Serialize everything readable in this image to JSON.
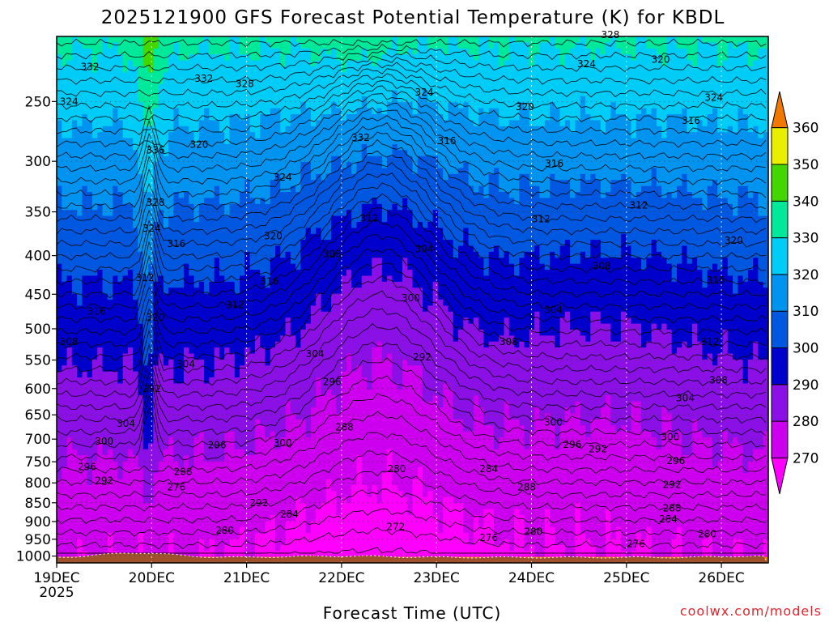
{
  "chart_data": {
    "type": "heatmap",
    "title": "2025121900 GFS Forecast Potential Temperature (K) for KBDL",
    "xlabel": "Forecast Time (UTC)",
    "ylabel": "",
    "credit": "coolwx.com/models",
    "x_ticks": [
      "19DEC",
      "20DEC",
      "21DEC",
      "22DEC",
      "23DEC",
      "24DEC",
      "25DEC",
      "26DEC"
    ],
    "x_year": "2025",
    "x_range_days": [
      0,
      7.5
    ],
    "y_ticks": [
      250,
      300,
      350,
      400,
      450,
      500,
      550,
      600,
      650,
      700,
      750,
      800,
      850,
      900,
      950,
      1000
    ],
    "ylim": [
      1020,
      200
    ],
    "y_scale": "log",
    "colorbar": {
      "ticks": [
        270,
        280,
        290,
        300,
        310,
        320,
        330,
        340,
        350,
        360
      ],
      "colors": [
        "#ff00ff",
        "#cc00ee",
        "#8a10e6",
        "#0000cc",
        "#0058e0",
        "#0094f0",
        "#00ccf8",
        "#00e89a",
        "#44d600",
        "#e8f000",
        "#f8a800",
        "#f07800"
      ]
    },
    "contour_labels": [
      {
        "text": "332",
        "x": 0.35,
        "p": 225
      },
      {
        "text": "324",
        "x": 0.13,
        "p": 250
      },
      {
        "text": "332",
        "x": 1.55,
        "p": 233
      },
      {
        "text": "328",
        "x": 1.98,
        "p": 237
      },
      {
        "text": "336",
        "x": 1.04,
        "p": 290
      },
      {
        "text": "320",
        "x": 1.5,
        "p": 285
      },
      {
        "text": "324",
        "x": 2.38,
        "p": 315
      },
      {
        "text": "328",
        "x": 1.04,
        "p": 340
      },
      {
        "text": "324",
        "x": 1.0,
        "p": 368
      },
      {
        "text": "316",
        "x": 1.26,
        "p": 386
      },
      {
        "text": "320",
        "x": 2.28,
        "p": 377
      },
      {
        "text": "312",
        "x": 0.93,
        "p": 428
      },
      {
        "text": "316",
        "x": 2.24,
        "p": 433
      },
      {
        "text": "312",
        "x": 1.88,
        "p": 465
      },
      {
        "text": "316",
        "x": 0.42,
        "p": 474
      },
      {
        "text": "320",
        "x": 1.04,
        "p": 483
      },
      {
        "text": "308",
        "x": 0.13,
        "p": 520
      },
      {
        "text": "304",
        "x": 1.36,
        "p": 557
      },
      {
        "text": "304",
        "x": 2.72,
        "p": 540
      },
      {
        "text": "296",
        "x": 2.9,
        "p": 588
      },
      {
        "text": "292",
        "x": 1.0,
        "p": 600
      },
      {
        "text": "304",
        "x": 0.73,
        "p": 668
      },
      {
        "text": "300",
        "x": 0.5,
        "p": 705
      },
      {
        "text": "296",
        "x": 1.69,
        "p": 713
      },
      {
        "text": "300",
        "x": 2.38,
        "p": 708
      },
      {
        "text": "288",
        "x": 3.03,
        "p": 675
      },
      {
        "text": "296",
        "x": 0.32,
        "p": 762
      },
      {
        "text": "292",
        "x": 0.5,
        "p": 795
      },
      {
        "text": "288",
        "x": 1.33,
        "p": 773
      },
      {
        "text": "276",
        "x": 1.26,
        "p": 810
      },
      {
        "text": "292",
        "x": 2.13,
        "p": 850
      },
      {
        "text": "284",
        "x": 2.45,
        "p": 880
      },
      {
        "text": "280",
        "x": 1.77,
        "p": 925
      },
      {
        "text": "280",
        "x": 3.58,
        "p": 767
      },
      {
        "text": "284",
        "x": 4.55,
        "p": 767
      },
      {
        "text": "288",
        "x": 4.95,
        "p": 810
      },
      {
        "text": "272",
        "x": 3.57,
        "p": 915
      },
      {
        "text": "276",
        "x": 4.55,
        "p": 946
      },
      {
        "text": "280",
        "x": 5.02,
        "p": 928
      },
      {
        "text": "312",
        "x": 3.29,
        "p": 357
      },
      {
        "text": "308",
        "x": 2.9,
        "p": 398
      },
      {
        "text": "304",
        "x": 3.87,
        "p": 392
      },
      {
        "text": "300",
        "x": 3.73,
        "p": 455
      },
      {
        "text": "292",
        "x": 3.85,
        "p": 545
      },
      {
        "text": "316",
        "x": 4.11,
        "p": 282
      },
      {
        "text": "324",
        "x": 3.87,
        "p": 243
      },
      {
        "text": "332",
        "x": 3.2,
        "p": 279
      },
      {
        "text": "320",
        "x": 4.93,
        "p": 254
      },
      {
        "text": "324",
        "x": 5.58,
        "p": 223
      },
      {
        "text": "328",
        "x": 5.83,
        "p": 204
      },
      {
        "text": "320",
        "x": 6.36,
        "p": 220
      },
      {
        "text": "316",
        "x": 5.24,
        "p": 302
      },
      {
        "text": "316",
        "x": 6.68,
        "p": 265
      },
      {
        "text": "324",
        "x": 6.92,
        "p": 247
      },
      {
        "text": "312",
        "x": 5.1,
        "p": 358
      },
      {
        "text": "312",
        "x": 6.13,
        "p": 343
      },
      {
        "text": "308",
        "x": 5.74,
        "p": 413
      },
      {
        "text": "304",
        "x": 5.23,
        "p": 472
      },
      {
        "text": "308",
        "x": 4.76,
        "p": 520
      },
      {
        "text": "320",
        "x": 7.13,
        "p": 382
      },
      {
        "text": "316",
        "x": 6.94,
        "p": 431
      },
      {
        "text": "312",
        "x": 6.88,
        "p": 520
      },
      {
        "text": "308",
        "x": 6.97,
        "p": 585
      },
      {
        "text": "304",
        "x": 6.62,
        "p": 618
      },
      {
        "text": "300",
        "x": 5.23,
        "p": 665
      },
      {
        "text": "296",
        "x": 5.43,
        "p": 712
      },
      {
        "text": "292",
        "x": 5.7,
        "p": 722
      },
      {
        "text": "300",
        "x": 6.46,
        "p": 695
      },
      {
        "text": "296",
        "x": 6.52,
        "p": 748
      },
      {
        "text": "292",
        "x": 6.48,
        "p": 804
      },
      {
        "text": "288",
        "x": 6.48,
        "p": 864
      },
      {
        "text": "284",
        "x": 6.44,
        "p": 893
      },
      {
        "text": "280",
        "x": 6.85,
        "p": 935
      },
      {
        "text": "276",
        "x": 6.1,
        "p": 963
      }
    ]
  }
}
